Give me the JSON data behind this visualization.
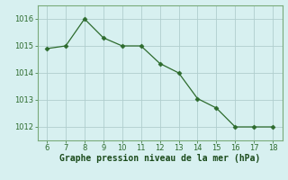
{
  "x": [
    6,
    7,
    8,
    9,
    10,
    11,
    12,
    13,
    14,
    15,
    16,
    17,
    18
  ],
  "y": [
    1014.9,
    1015.0,
    1016.0,
    1015.3,
    1015.0,
    1015.0,
    1014.35,
    1014.0,
    1013.05,
    1012.7,
    1012.0,
    1012.0,
    1012.0
  ],
  "line_color": "#2d6b2d",
  "marker": "D",
  "marker_size": 2.5,
  "background_color": "#d7f0f0",
  "grid_color": "#b0cece",
  "xlabel": "Graphe pression niveau de la mer (hPa)",
  "xlabel_color": "#1a4a1a",
  "xlabel_fontsize": 7,
  "tick_color": "#2d6b2d",
  "tick_fontsize": 6,
  "xlim": [
    5.5,
    18.5
  ],
  "ylim": [
    1011.5,
    1016.5
  ],
  "yticks": [
    1012,
    1013,
    1014,
    1015,
    1016
  ],
  "xticks": [
    6,
    7,
    8,
    9,
    10,
    11,
    12,
    13,
    14,
    15,
    16,
    17,
    18
  ],
  "spine_color": "#7aaa7a"
}
